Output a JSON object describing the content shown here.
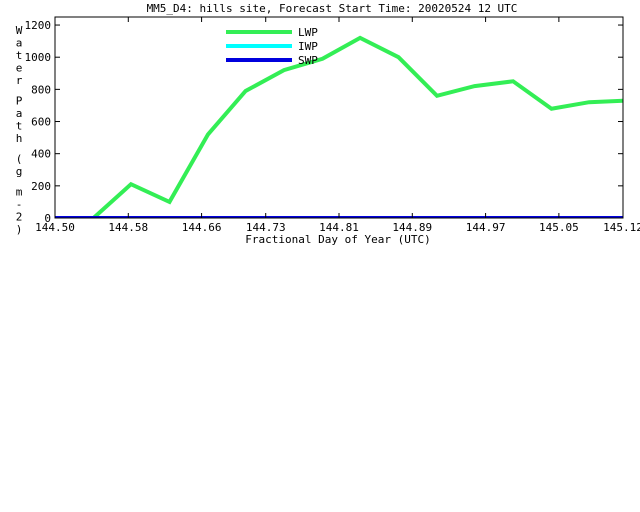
{
  "chart_data": {
    "type": "line",
    "title": "MM5_D4: hills site,  Forecast Start Time: 20020524 12 UTC",
    "xlabel": "Fractional Day of Year (UTC)",
    "ylabel": "Water Path (g m-2)",
    "xlim": [
      144.5,
      145.12
    ],
    "ylim": [
      0,
      1250
    ],
    "x_ticks": [
      "144.50",
      "144.58",
      "144.66",
      "144.73",
      "144.81",
      "144.89",
      "144.97",
      "145.05",
      "145.12"
    ],
    "y_ticks": [
      "0",
      "200",
      "400",
      "600",
      "800",
      "1000",
      "1200"
    ],
    "grid": false,
    "legend_position": "top-center",
    "series": [
      {
        "name": "LWP",
        "color": "#33ee55",
        "x": [
          144.542,
          144.583,
          144.625,
          144.667,
          144.708,
          144.75,
          144.792,
          144.833,
          144.875,
          144.917,
          144.958,
          145.0,
          145.042,
          145.083,
          145.125
        ],
        "y": [
          0,
          210,
          100,
          520,
          790,
          920,
          990,
          1120,
          1000,
          760,
          820,
          850,
          680,
          720,
          730
        ]
      },
      {
        "name": "IWP",
        "color": "#00ffff",
        "x": [
          144.5,
          145.12
        ],
        "y": [
          0,
          0
        ]
      },
      {
        "name": "SWP",
        "color": "#0000dd",
        "x": [
          144.5,
          145.12
        ],
        "y": [
          0,
          0
        ]
      }
    ]
  }
}
